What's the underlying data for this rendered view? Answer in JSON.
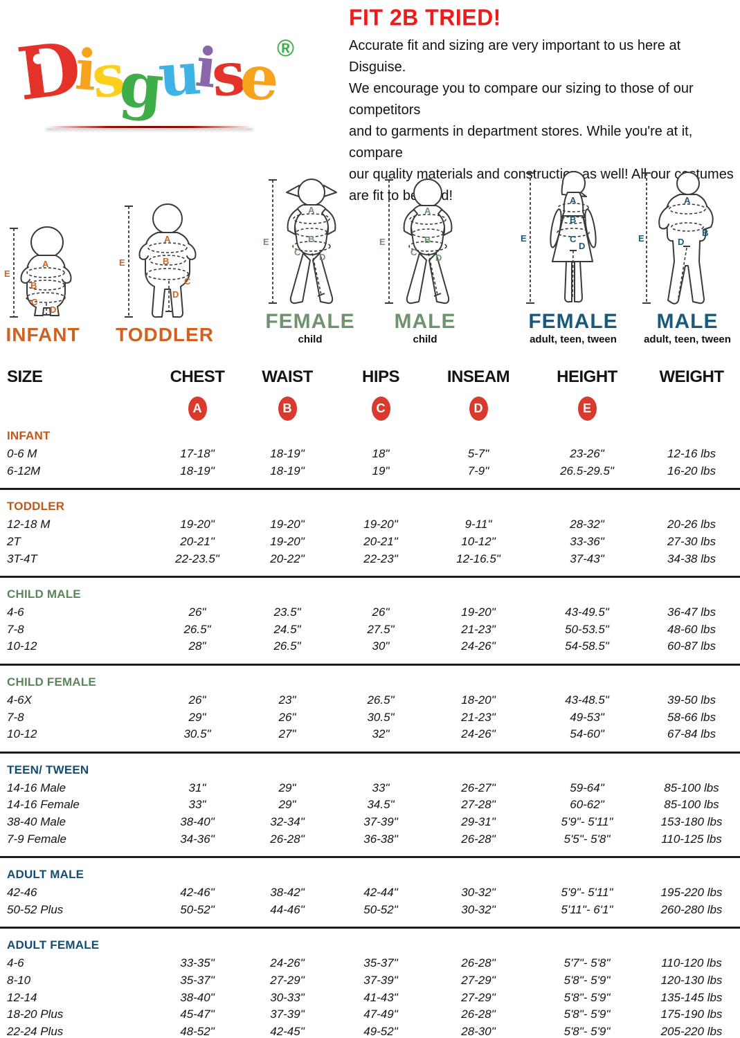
{
  "brand": {
    "letters": [
      {
        "ch": "D",
        "color": "#e4322b"
      },
      {
        "ch": "i",
        "color": "#f6a21c"
      },
      {
        "ch": "s",
        "color": "#fccf1d"
      },
      {
        "ch": "g",
        "color": "#3fae49"
      },
      {
        "ch": "u",
        "color": "#3fb3e5"
      },
      {
        "ch": "i",
        "color": "#8a67ab"
      },
      {
        "ch": "s",
        "color": "#e4322b"
      },
      {
        "ch": "e",
        "color": "#f6a21c"
      }
    ],
    "registered_mark": "®"
  },
  "intro": {
    "title": "FIT 2B TRIED!",
    "lines": [
      "Accurate fit and sizing are very important to us here at Disguise.",
      "We encourage you to compare our sizing to those of our competitors",
      "and to garments in department stores. While you're at it, compare",
      "our quality materials and construction as well! All our costumes",
      "are fit to be tried!"
    ]
  },
  "figures": {
    "measure_letters": [
      "A",
      "B",
      "C",
      "D",
      "E"
    ],
    "items": [
      {
        "name": "INFANT",
        "sub": "",
        "group": "orange"
      },
      {
        "name": "TODDLER",
        "sub": "",
        "group": "orange"
      },
      {
        "name": "FEMALE",
        "sub": "child",
        "group": "green"
      },
      {
        "name": "MALE",
        "sub": "child",
        "group": "green"
      },
      {
        "name": "FEMALE",
        "sub": "adult, teen, tween",
        "group": "blue"
      },
      {
        "name": "MALE",
        "sub": "adult, teen, tween",
        "group": "blue"
      }
    ]
  },
  "table": {
    "columns": [
      "SIZE",
      "CHEST",
      "WAIST",
      "HIPS",
      "INSEAM",
      "HEIGHT",
      "WEIGHT"
    ],
    "badges": [
      "A",
      "B",
      "C",
      "D",
      "E"
    ],
    "sections": [
      {
        "label": "INFANT",
        "color": "orange",
        "rows": [
          [
            "0-6 M",
            "17-18\"",
            "18-19\"",
            "18\"",
            "5-7\"",
            "23-26\"",
            "12-16 lbs"
          ],
          [
            "6-12M",
            "18-19\"",
            "18-19\"",
            "19\"",
            "7-9\"",
            "26.5-29.5\"",
            "16-20 lbs"
          ]
        ]
      },
      {
        "label": "TODDLER",
        "color": "orange",
        "rows": [
          [
            "12-18 M",
            "19-20\"",
            "19-20\"",
            "19-20\"",
            "9-11\"",
            "28-32\"",
            "20-26 lbs"
          ],
          [
            "2T",
            "20-21\"",
            "19-20\"",
            "20-21\"",
            "10-12\"",
            "33-36\"",
            "27-30 lbs"
          ],
          [
            "3T-4T",
            "22-23.5\"",
            "20-22\"",
            "22-23\"",
            "12-16.5\"",
            "37-43\"",
            "34-38 lbs"
          ]
        ]
      },
      {
        "label": "CHILD MALE",
        "color": "green",
        "rows": [
          [
            "4-6",
            "26\"",
            "23.5\"",
            "26\"",
            "19-20\"",
            "43-49.5\"",
            "36-47 lbs"
          ],
          [
            "7-8",
            "26.5\"",
            "24.5\"",
            "27.5\"",
            "21-23\"",
            "50-53.5\"",
            "48-60 lbs"
          ],
          [
            "10-12",
            "28\"",
            "26.5\"",
            "30\"",
            "24-26\"",
            "54-58.5\"",
            "60-87 lbs"
          ]
        ]
      },
      {
        "label": "CHILD FEMALE",
        "color": "green",
        "rows": [
          [
            "4-6X",
            "26\"",
            "23\"",
            "26.5\"",
            "18-20\"",
            "43-48.5\"",
            "39-50 lbs"
          ],
          [
            "7-8",
            "29\"",
            "26\"",
            "30.5\"",
            "21-23\"",
            "49-53\"",
            "58-66 lbs"
          ],
          [
            "10-12",
            "30.5\"",
            "27\"",
            "32\"",
            "24-26\"",
            "54-60\"",
            "67-84 lbs"
          ]
        ]
      },
      {
        "label": "TEEN/ TWEEN",
        "color": "blue",
        "rows": [
          [
            "14-16 Male",
            "31\"",
            "29\"",
            "33\"",
            "26-27\"",
            "59-64\"",
            "85-100 lbs"
          ],
          [
            "14-16 Female",
            "33\"",
            "29\"",
            "34.5\"",
            "27-28\"",
            "60-62\"",
            "85-100 lbs"
          ],
          [
            "38-40 Male",
            "38-40\"",
            "32-34\"",
            "37-39\"",
            "29-31\"",
            "5'9\"- 5'11\"",
            "153-180 lbs"
          ],
          [
            "7-9 Female",
            "34-36\"",
            "26-28\"",
            "36-38\"",
            "26-28\"",
            "5'5\"- 5'8\"",
            "110-125 lbs"
          ]
        ]
      },
      {
        "label": "ADULT MALE",
        "color": "blue",
        "rows": [
          [
            "42-46",
            "42-46\"",
            "38-42\"",
            "42-44\"",
            "30-32\"",
            "5'9\"- 5'11\"",
            "195-220 lbs"
          ],
          [
            "50-52 Plus",
            "50-52\"",
            "44-46\"",
            "50-52\"",
            "30-32\"",
            "5'11\"- 6'1\"",
            "260-280 lbs"
          ]
        ]
      },
      {
        "label": "ADULT FEMALE",
        "color": "blue",
        "rows": [
          [
            "4-6",
            "33-35\"",
            "24-26\"",
            "35-37\"",
            "26-28\"",
            "5'7\"- 5'8\"",
            "110-120 lbs"
          ],
          [
            "8-10",
            "35-37\"",
            "27-29\"",
            "37-39\"",
            "27-29\"",
            "5'8\"- 5'9\"",
            "120-130 lbs"
          ],
          [
            "12-14",
            "38-40\"",
            "30-33\"",
            "41-43\"",
            "27-29\"",
            "5'8\"- 5'9\"",
            "135-145 lbs"
          ],
          [
            "18-20 Plus",
            "45-47\"",
            "37-39\"",
            "47-49\"",
            "26-28\"",
            "5'8\"- 5'9\"",
            "175-190 lbs"
          ],
          [
            "22-24 Plus",
            "48-52\"",
            "42-45\"",
            "49-52\"",
            "28-30\"",
            "5'8\"- 5'9\"",
            "205-220 lbs"
          ]
        ]
      }
    ]
  },
  "colors": {
    "heading_red": "#ed1b1b",
    "badge_red": "#d93a2e",
    "section_orange": "#c0571b",
    "section_green": "#5d855c",
    "section_blue": "#154d72",
    "figure_orange": "#d2611f",
    "figure_green": "#6f936f",
    "figure_blue": "#1b587d"
  }
}
